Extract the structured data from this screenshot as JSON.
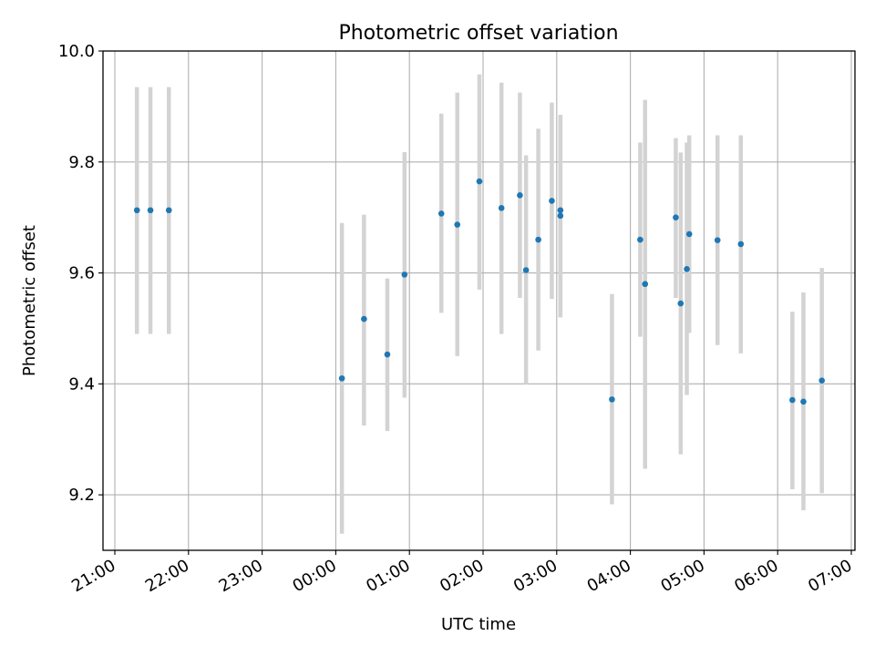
{
  "chart_data": {
    "type": "scatter",
    "title": "Photometric offset variation",
    "xlabel": "UTC time",
    "ylabel": "Photometric offset",
    "ylim": [
      9.1,
      10.0
    ],
    "xlim": [
      "21:00",
      "07:00"
    ],
    "y_ticks": [
      9.2,
      9.4,
      9.6,
      9.8,
      10.0
    ],
    "y_tick_labels": [
      "9.2",
      "9.4",
      "9.6",
      "9.8",
      "10.0"
    ],
    "x_ticks": [
      "21:00",
      "22:00",
      "23:00",
      "00:00",
      "01:00",
      "02:00",
      "03:00",
      "04:00",
      "05:00",
      "06:00",
      "07:00"
    ],
    "grid": true,
    "point_color": "#1f77b4",
    "errorbar_color": "#d3d3d3",
    "points": [
      {
        "time": "21:18",
        "y": 9.713,
        "ylow": 9.49,
        "yhigh": 9.935
      },
      {
        "time": "21:29",
        "y": 9.713,
        "ylow": 9.49,
        "yhigh": 9.935
      },
      {
        "time": "21:44",
        "y": 9.713,
        "ylow": 9.49,
        "yhigh": 9.935
      },
      {
        "time": "00:05",
        "y": 9.41,
        "ylow": 9.13,
        "yhigh": 9.69
      },
      {
        "time": "00:23",
        "y": 9.517,
        "ylow": 9.325,
        "yhigh": 9.705
      },
      {
        "time": "00:42",
        "y": 9.453,
        "ylow": 9.315,
        "yhigh": 9.59
      },
      {
        "time": "00:56",
        "y": 9.597,
        "ylow": 9.375,
        "yhigh": 9.818
      },
      {
        "time": "01:26",
        "y": 9.707,
        "ylow": 9.528,
        "yhigh": 9.887
      },
      {
        "time": "01:39",
        "y": 9.687,
        "ylow": 9.45,
        "yhigh": 9.925
      },
      {
        "time": "01:57",
        "y": 9.765,
        "ylow": 9.57,
        "yhigh": 9.958
      },
      {
        "time": "02:15",
        "y": 9.717,
        "ylow": 9.49,
        "yhigh": 9.943
      },
      {
        "time": "02:30",
        "y": 9.74,
        "ylow": 9.555,
        "yhigh": 9.925
      },
      {
        "time": "02:35",
        "y": 9.605,
        "ylow": 9.4,
        "yhigh": 9.812
      },
      {
        "time": "02:45",
        "y": 9.66,
        "ylow": 9.46,
        "yhigh": 9.86
      },
      {
        "time": "02:56",
        "y": 9.73,
        "ylow": 9.553,
        "yhigh": 9.907
      },
      {
        "time": "03:03",
        "y": 9.713,
        "ylow": 9.52,
        "yhigh": 9.885
      },
      {
        "time": "03:03",
        "y": 9.703,
        "ylow": 9.52,
        "yhigh": 9.885
      },
      {
        "time": "03:45",
        "y": 9.372,
        "ylow": 9.183,
        "yhigh": 9.562
      },
      {
        "time": "04:08",
        "y": 9.66,
        "ylow": 9.485,
        "yhigh": 9.835
      },
      {
        "time": "04:12",
        "y": 9.58,
        "ylow": 9.247,
        "yhigh": 9.912
      },
      {
        "time": "04:37",
        "y": 9.7,
        "ylow": 9.555,
        "yhigh": 9.843
      },
      {
        "time": "04:41",
        "y": 9.545,
        "ylow": 9.273,
        "yhigh": 9.817
      },
      {
        "time": "04:46",
        "y": 9.607,
        "ylow": 9.38,
        "yhigh": 9.835
      },
      {
        "time": "04:48",
        "y": 9.67,
        "ylow": 9.492,
        "yhigh": 9.848
      },
      {
        "time": "05:11",
        "y": 9.659,
        "ylow": 9.47,
        "yhigh": 9.848
      },
      {
        "time": "05:30",
        "y": 9.652,
        "ylow": 9.455,
        "yhigh": 9.848
      },
      {
        "time": "06:12",
        "y": 9.371,
        "ylow": 9.21,
        "yhigh": 9.53
      },
      {
        "time": "06:21",
        "y": 9.368,
        "ylow": 9.172,
        "yhigh": 9.565
      },
      {
        "time": "06:36",
        "y": 9.406,
        "ylow": 9.203,
        "yhigh": 9.609
      }
    ]
  }
}
